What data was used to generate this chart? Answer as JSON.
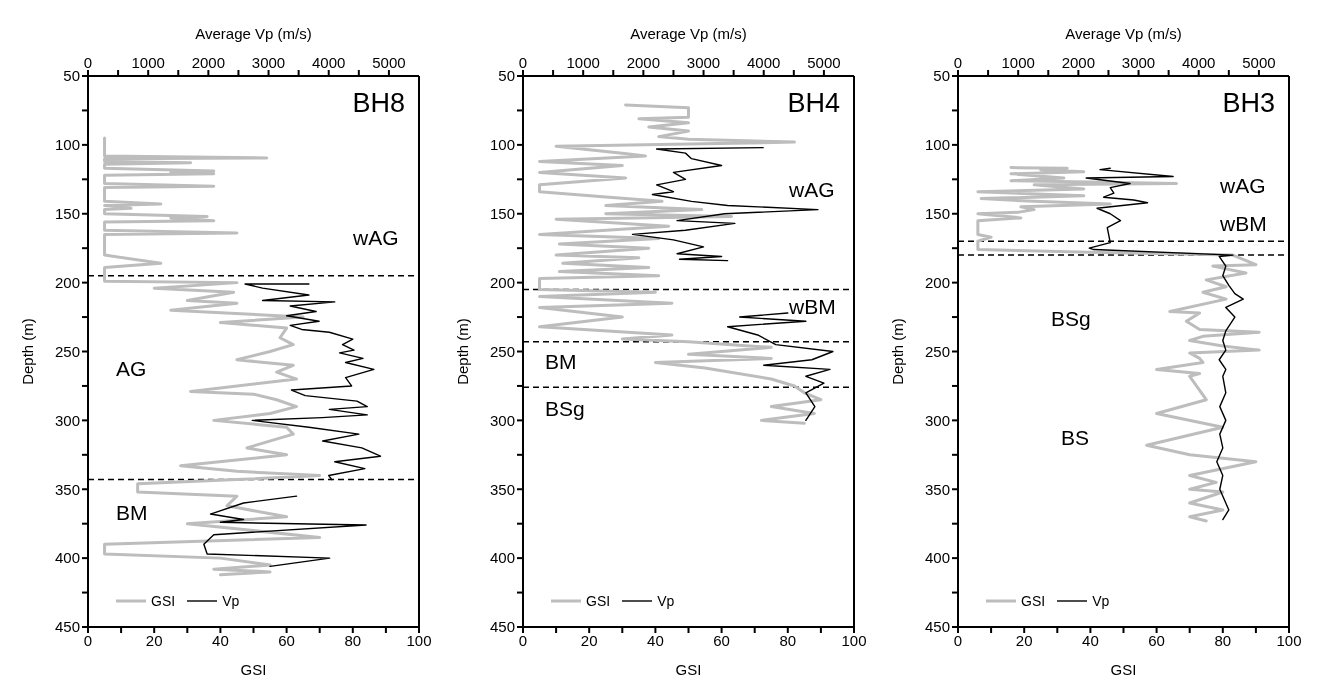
{
  "chart_data": [
    {
      "type": "line",
      "title": "BH8",
      "xlabel": "GSI",
      "x2label": "Average Vp (m/s)",
      "ylabel": "Depth (m)",
      "xlim": [
        0,
        100
      ],
      "xticks": [
        0,
        {
          "value": 10,
          "label": null
        },
        20,
        {
          "value": 30,
          "label": null
        },
        40,
        {
          "value": 50,
          "label": null
        },
        60,
        {
          "value": 70,
          "label": null
        },
        80,
        {
          "value": 90,
          "label": null
        },
        100
      ],
      "x2lim": [
        0,
        5500
      ],
      "x2ticks": [
        0,
        {
          "value": 500,
          "label": null
        },
        1000,
        {
          "value": 1500,
          "label": null
        },
        2000,
        {
          "value": 2500,
          "label": null
        },
        3000,
        {
          "value": 3500,
          "label": null
        },
        4000,
        {
          "value": 4500,
          "label": null
        },
        5000
      ],
      "ylim": [
        450,
        50
      ],
      "yticks": [
        50,
        {
          "value": 75,
          "label": null
        },
        100,
        {
          "value": 125,
          "label": null
        },
        150,
        {
          "value": 175,
          "label": null
        },
        200,
        {
          "value": 225,
          "label": null
        },
        250,
        {
          "value": 275,
          "label": null
        },
        300,
        {
          "value": 325,
          "label": null
        },
        350,
        {
          "value": 375,
          "label": null
        },
        400,
        {
          "value": 425,
          "label": null
        },
        450
      ],
      "legend": "bottom left",
      "marker": "none",
      "line_style": "solid",
      "series": [
        {
          "name": "GSI",
          "color": "#bdbdbd",
          "x": [
            5,
            5,
            54,
            5,
            5,
            31,
            5,
            5,
            38,
            25,
            38,
            5,
            5,
            38,
            5,
            5,
            22,
            5,
            13,
            5,
            5,
            36,
            25,
            38,
            5,
            5,
            45,
            5,
            5,
            22,
            5,
            5,
            45,
            20,
            44,
            30,
            45,
            25,
            65,
            40,
            60,
            58,
            62,
            55,
            45,
            62,
            57,
            63,
            31,
            50,
            57,
            63,
            55,
            38,
            60,
            62,
            48,
            60,
            28,
            45,
            70,
            45,
            15,
            15,
            45,
            42,
            60,
            30,
            70,
            5,
            5,
            40,
            55,
            38,
            55,
            40
          ],
          "values": [
            95,
            108,
            109.5,
            110,
            112,
            113,
            114,
            117,
            119,
            120,
            121,
            122,
            128,
            130,
            131,
            141,
            143,
            144,
            146,
            147,
            150,
            152,
            153,
            155,
            156,
            162,
            164,
            165,
            180,
            186,
            189,
            199,
            200,
            204,
            207,
            213,
            215,
            220,
            225,
            229,
            233,
            240,
            245,
            250,
            256,
            260,
            265,
            270,
            279,
            281,
            285,
            290,
            295,
            300,
            305,
            310,
            320,
            325,
            333,
            337,
            340,
            343,
            346,
            352,
            355,
            362,
            370,
            375,
            385,
            390,
            397,
            400,
            405,
            408,
            410,
            412
          ]
        },
        {
          "name": "Vp",
          "color": "#000000",
          "axis": "x2",
          "x": [
            3670,
            2610,
            2900,
            3670,
            2900,
            4100,
            3360,
            3790,
            3300,
            3840,
            3360,
            3550,
            4010,
            4400,
            4230,
            4420,
            4180,
            4570,
            4280,
            4750,
            4280,
            4380,
            3380,
            3610,
            4470,
            4640,
            4010,
            4640,
            3890,
            2730,
            3670,
            4500,
            3900,
            4550,
            4860,
            4100,
            4600,
            4000,
            4050,
            null,
            3465,
            2585,
            2035,
            2585,
            2200,
            4620,
            2090,
            1925,
            1980,
            4015,
            3025
          ],
          "values": [
            201,
            201,
            204,
            209,
            213,
            214,
            217,
            221,
            224,
            228,
            231,
            234,
            236,
            241,
            245,
            249,
            251,
            255,
            258,
            263,
            269,
            275,
            278,
            282,
            286,
            290,
            292,
            296,
            298,
            300,
            305,
            310,
            315,
            320,
            326,
            330,
            335,
            340,
            343,
            null,
            355,
            360,
            368,
            372,
            374,
            376,
            383,
            390,
            397,
            400,
            406
          ]
        }
      ],
      "ref_lines": [
        {
          "axis": "y",
          "value": 195,
          "color": "#000000",
          "line_style": "dashed"
        },
        {
          "axis": "y",
          "value": 343,
          "color": "#000000",
          "line_style": "dashed"
        }
      ],
      "annotations": [
        "wAG",
        "AG",
        "BM"
      ]
    },
    {
      "type": "line",
      "title": "BH4",
      "xlabel": "GSI",
      "x2label": "Average Vp (m/s)",
      "ylabel": "Depth (m)",
      "xlim": [
        0,
        100
      ],
      "xticks": [
        0,
        {
          "value": 10,
          "label": null
        },
        20,
        {
          "value": 30,
          "label": null
        },
        40,
        {
          "value": 50,
          "label": null
        },
        60,
        {
          "value": 70,
          "label": null
        },
        80,
        {
          "value": 90,
          "label": null
        },
        100
      ],
      "x2lim": [
        0,
        5500
      ],
      "x2ticks": [
        0,
        {
          "value": 500,
          "label": null
        },
        1000,
        {
          "value": 1500,
          "label": null
        },
        2000,
        {
          "value": 2500,
          "label": null
        },
        3000,
        {
          "value": 3500,
          "label": null
        },
        4000,
        {
          "value": 4500,
          "label": null
        },
        5000
      ],
      "ylim": [
        450,
        50
      ],
      "yticks": [
        50,
        {
          "value": 75,
          "label": null
        },
        100,
        {
          "value": 125,
          "label": null
        },
        150,
        {
          "value": 175,
          "label": null
        },
        200,
        {
          "value": 225,
          "label": null
        },
        250,
        {
          "value": 275,
          "label": null
        },
        300,
        {
          "value": 325,
          "label": null
        },
        350,
        {
          "value": 375,
          "label": null
        },
        400,
        {
          "value": 425,
          "label": null
        },
        450
      ],
      "legend": "bottom left",
      "marker": "none",
      "line_style": "solid",
      "series": [
        {
          "name": "GSI",
          "color": "#bdbdbd",
          "x": [
            31,
            50,
            50,
            35,
            50,
            38,
            50,
            41,
            50,
            82,
            10,
            30,
            37,
            5,
            30,
            5,
            31,
            5,
            5,
            26,
            42,
            25,
            54,
            25,
            63,
            10,
            44,
            5,
            41,
            11,
            38,
            10,
            35,
            12,
            38,
            11,
            41,
            5,
            5,
            40,
            5,
            45,
            5,
            30,
            5,
            45,
            30,
            50,
            75,
            50,
            75,
            40,
            55,
            75,
            82,
            85,
            90,
            75,
            88,
            72,
            85
          ],
          "values": [
            71,
            73,
            80,
            81,
            84,
            87,
            90,
            94,
            96,
            98,
            101,
            106,
            108,
            112,
            115,
            120,
            124,
            129,
            134,
            138,
            141,
            144,
            147,
            150,
            152,
            154,
            159,
            165,
            168,
            172,
            175,
            180,
            182,
            186,
            189,
            192,
            195,
            197,
            205,
            207,
            210,
            215,
            218,
            225,
            232,
            238,
            241,
            243,
            247,
            252,
            255,
            258,
            262,
            270,
            275,
            280,
            285,
            290,
            295,
            300,
            302
          ]
        },
        {
          "name": "Vp",
          "color": "#000000",
          "axis": "x2",
          "x": [
            3990,
            2220,
            2700,
            2800,
            3300,
            2500,
            2700,
            2220,
            2500,
            2150,
            2800,
            3400,
            4900,
            3350,
            2560,
            3520,
            2700,
            1820,
            2500,
            3000,
            2560,
            3300,
            2600,
            3400,
            null,
            4400,
            3600,
            4700,
            3400,
            3900,
            4200,
            5150,
            4800,
            4000,
            5100,
            4700,
            5000,
            4700,
            4850,
            4700
          ],
          "values": [
            102,
            103,
            106,
            110,
            115,
            120,
            125,
            129,
            134,
            136,
            141,
            144,
            147,
            150,
            155,
            157,
            162,
            165,
            169,
            174,
            179,
            181,
            183,
            184,
            null,
            222,
            225,
            228,
            232,
            238,
            245,
            250,
            256,
            260,
            263,
            268,
            273,
            280,
            290,
            300
          ]
        }
      ],
      "ref_lines": [
        {
          "axis": "y",
          "value": 205,
          "color": "#000000",
          "line_style": "dashed"
        },
        {
          "axis": "y",
          "value": 243,
          "color": "#000000",
          "line_style": "dashed"
        },
        {
          "axis": "y",
          "value": 276,
          "color": "#000000",
          "line_style": "dashed"
        }
      ],
      "annotations": [
        "wAG",
        "wBM",
        "BM",
        "BSg"
      ]
    },
    {
      "type": "line",
      "title": "BH3",
      "xlabel": "GSI",
      "x2label": "Average Vp (m/s)",
      "ylabel": "Depth (m)",
      "xlim": [
        0,
        100
      ],
      "xticks": [
        0,
        {
          "value": 10,
          "label": null
        },
        20,
        {
          "value": 30,
          "label": null
        },
        40,
        {
          "value": 50,
          "label": null
        },
        60,
        {
          "value": 70,
          "label": null
        },
        80,
        {
          "value": 90,
          "label": null
        },
        100
      ],
      "x2lim": [
        0,
        5500
      ],
      "x2ticks": [
        0,
        {
          "value": 500,
          "label": null
        },
        1000,
        {
          "value": 1500,
          "label": null
        },
        2000,
        {
          "value": 2500,
          "label": null
        },
        3000,
        {
          "value": 3500,
          "label": null
        },
        4000,
        {
          "value": 4500,
          "label": null
        },
        5000
      ],
      "ylim": [
        450,
        50
      ],
      "yticks": [
        50,
        {
          "value": 75,
          "label": null
        },
        100,
        {
          "value": 125,
          "label": null
        },
        150,
        {
          "value": 175,
          "label": null
        },
        200,
        {
          "value": 225,
          "label": null
        },
        250,
        {
          "value": 275,
          "label": null
        },
        300,
        {
          "value": 325,
          "label": null
        },
        350,
        {
          "value": 375,
          "label": null
        },
        400,
        {
          "value": 425,
          "label": null
        },
        450
      ],
      "legend": "bottom left",
      "marker": "none",
      "line_style": "solid",
      "series": [
        {
          "name": "GSI",
          "color": "#bdbdbd",
          "x": [
            16,
            33,
            25,
            38,
            16,
            32,
            16,
            66,
            23,
            38,
            6,
            38,
            7,
            23,
            46,
            19,
            23,
            18,
            6,
            19,
            6,
            6,
            10,
            6,
            6,
            40,
            83,
            90,
            77,
            87,
            75,
            81,
            74,
            81,
            64,
            73,
            69,
            73,
            91,
            74,
            70,
            80,
            91,
            70,
            73,
            74,
            60,
            73,
            70,
            75,
            60,
            80,
            57,
            70,
            90,
            70,
            78,
            70,
            80,
            70,
            80,
            70,
            75
          ],
          "values": [
            116.5,
            117,
            118,
            119.5,
            121,
            124,
            126,
            128,
            129,
            132,
            134,
            137,
            139,
            141,
            143,
            145,
            147,
            149,
            150,
            153,
            155,
            165,
            167,
            170,
            176,
            178,
            180,
            187,
            188,
            193,
            198,
            203,
            207,
            212,
            221,
            222,
            228,
            234,
            236,
            239,
            242,
            246,
            249,
            251,
            255,
            258,
            263,
            266,
            268,
            285,
            295,
            305,
            318,
            325,
            330,
            340,
            345,
            350,
            352,
            360,
            365,
            370,
            373
          ]
        },
        {
          "name": "Vp",
          "color": "#000000",
          "axis": "x2",
          "x": [
            2530,
            2360,
            3575,
            2130,
            2860,
            2530,
            2590,
            2420,
            2920,
            3150,
            2310,
            2530,
            2700,
            2480,
            2530,
            2180,
            2260,
            4570,
            4340,
            4450,
            4400,
            4500,
            4600,
            4740,
            4450,
            4600,
            4450,
            4400,
            4450,
            4340,
            4450,
            4400,
            4450,
            4350,
            4450,
            4350,
            4400,
            4300,
            4400,
            4350,
            4500,
            4400
          ],
          "values": [
            117,
            118,
            123,
            124,
            128,
            131,
            135,
            138,
            140,
            142,
            146,
            150,
            155,
            160,
            171,
            175,
            176,
            180,
            181,
            188,
            195,
            202,
            208,
            212,
            218,
            225,
            235,
            242,
            249,
            256,
            263,
            268,
            280,
            290,
            300,
            310,
            320,
            330,
            340,
            350,
            365,
            372
          ]
        }
      ],
      "ref_lines": [
        {
          "axis": "y",
          "value": 170,
          "color": "#000000",
          "line_style": "dashed"
        },
        {
          "axis": "y",
          "value": 180,
          "color": "#000000",
          "line_style": "dashed"
        }
      ],
      "annotations": [
        "wAG",
        "wBM",
        "BSg",
        "BS"
      ]
    }
  ]
}
